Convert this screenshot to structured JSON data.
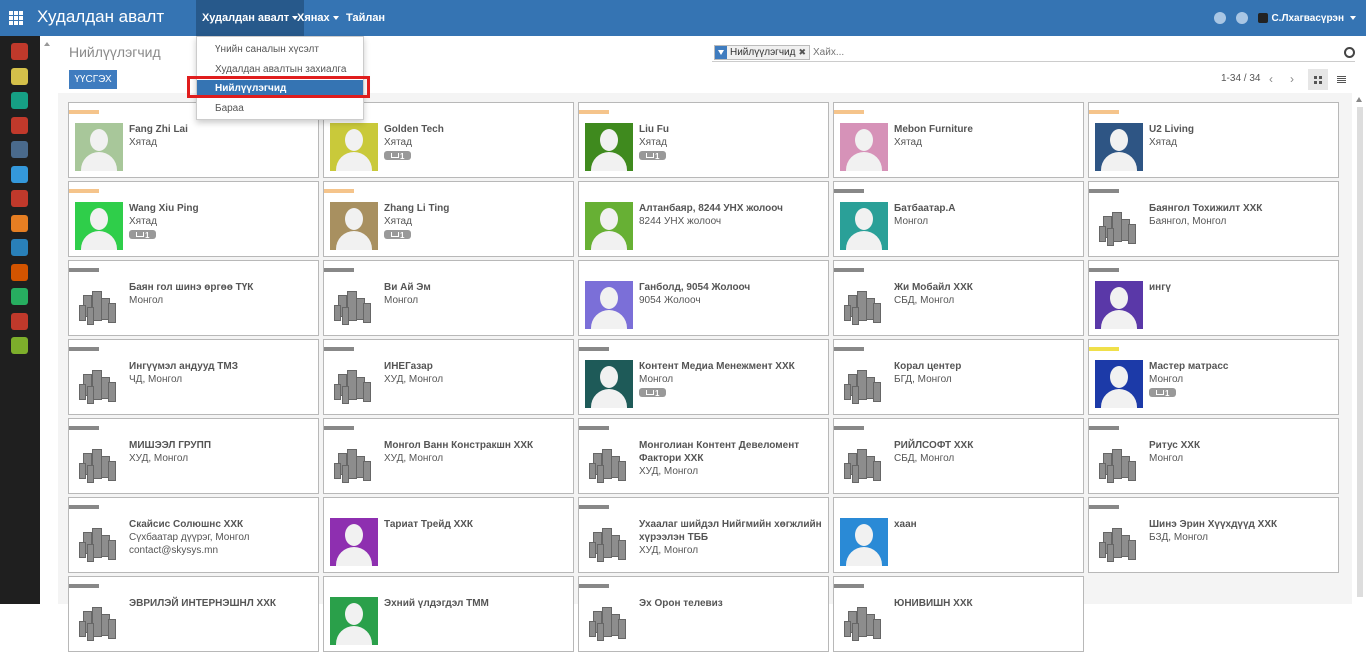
{
  "app_title": "Худалдан авалт",
  "top_menu": [
    {
      "label": "Худалдан авалт",
      "active": true
    },
    {
      "label": "Хянах",
      "active": false
    },
    {
      "label": "Тайлан",
      "active": false
    }
  ],
  "user": {
    "name": "С.Лхагвасүрэн"
  },
  "dropdown": [
    {
      "label": "Үнийн саналын хүсэлт",
      "selected": false
    },
    {
      "label": "Худалдан авалтын захиалга",
      "selected": false
    },
    {
      "label": "Нийлүүлэгчид",
      "selected": true
    },
    {
      "label": "Бараа",
      "selected": false
    }
  ],
  "breadcrumb": "Нийлүүлэгчид",
  "create_button": "ҮҮСГЭХ",
  "search": {
    "facet_label": "Нийлүүлэгчид",
    "placeholder": "Хайх..."
  },
  "pager": "1-34 / 34",
  "sidebar_icons": [
    {
      "icon": "chat-icon",
      "color": "#c0392b"
    },
    {
      "icon": "notes-icon",
      "color": "#d4c04a"
    },
    {
      "icon": "crm-icon",
      "color": "#16a085"
    },
    {
      "icon": "sales-icon",
      "color": "#c0392b"
    },
    {
      "icon": "pos-icon",
      "color": "#4a6a8c"
    },
    {
      "icon": "invoicing-icon",
      "color": "#3498db"
    },
    {
      "icon": "inventory-icon",
      "color": "#c0392b"
    },
    {
      "icon": "purchase-icon",
      "color": "#e67e22"
    },
    {
      "icon": "employees-icon",
      "color": "#2980b9"
    },
    {
      "icon": "website-icon",
      "color": "#d35400"
    },
    {
      "icon": "contacts-icon",
      "color": "#27ae60"
    },
    {
      "icon": "dashboard-icon",
      "color": "#c0392b"
    },
    {
      "icon": "settings-icon",
      "color": "#7dae2b"
    }
  ],
  "cards": [
    {
      "name": "Fang Zhi Lai",
      "lines": [
        "Хятад"
      ],
      "badge": false,
      "image": "person",
      "bg": "#a8c79a",
      "tag": "#f5c48b"
    },
    {
      "name": "Golden Tech",
      "lines": [
        "Хятад"
      ],
      "badge": true,
      "image": "person",
      "bg": "#c9c93a",
      "tag": "#f5c48b"
    },
    {
      "name": "Liu Fu",
      "lines": [
        "Хятад"
      ],
      "badge": true,
      "image": "person",
      "bg": "#3f8a1e",
      "tag": "#f5c48b"
    },
    {
      "name": "Mebon Furniture",
      "lines": [
        "Хятад"
      ],
      "badge": false,
      "image": "person",
      "bg": "#d692b8",
      "tag": "#f5c48b"
    },
    {
      "name": "U2 Living",
      "lines": [
        "Хятад"
      ],
      "badge": false,
      "image": "person",
      "bg": "#2e5584",
      "tag": "#f5c48b"
    },
    {
      "name": "Wang Xiu Ping",
      "lines": [
        "Хятад"
      ],
      "badge": true,
      "image": "person",
      "bg": "#2fce4a",
      "tag": "#f5c48b"
    },
    {
      "name": "Zhang Li Ting",
      "lines": [
        "Хятад"
      ],
      "badge": true,
      "image": "person",
      "bg": "#a89060",
      "tag": "#f5c48b"
    },
    {
      "name": "Алтанбаяр, 8244 УНХ жолооч",
      "lines": [
        "8244 УНХ жолооч"
      ],
      "badge": false,
      "image": "person",
      "bg": "#67b034",
      "tag": ""
    },
    {
      "name": "Батбаатар.А",
      "lines": [
        "Монгол"
      ],
      "badge": false,
      "image": "person",
      "bg": "#2aa098",
      "tag": "#888888"
    },
    {
      "name": "Баянгол Тохижилт ХХК",
      "lines": [
        "Баянгол, Монгол"
      ],
      "badge": false,
      "image": "building",
      "bg": "#ffffff",
      "tag": "#888888"
    },
    {
      "name": "Баян гол шинэ өргөө ТҮК",
      "lines": [
        "Монгол"
      ],
      "badge": false,
      "image": "building",
      "bg": "#ffffff",
      "tag": "#888888"
    },
    {
      "name": "Ви Ай Эм",
      "lines": [
        "Монгол"
      ],
      "badge": false,
      "image": "building",
      "bg": "#ffffff",
      "tag": "#888888"
    },
    {
      "name": "Ганболд, 9054 Жолооч",
      "lines": [
        "9054 Жолооч"
      ],
      "badge": false,
      "image": "person",
      "bg": "#7b6fd8",
      "tag": ""
    },
    {
      "name": "Жи Мобайл ХХК",
      "lines": [
        "СБД, Монгол"
      ],
      "badge": false,
      "image": "building",
      "bg": "#ffffff",
      "tag": "#888888"
    },
    {
      "name": "ингү",
      "lines": [],
      "badge": false,
      "image": "person",
      "bg": "#5a38a8",
      "tag": "#888888"
    },
    {
      "name": "Ингүүмэл андууд ТМЗ",
      "lines": [
        "ЧД, Монгол"
      ],
      "badge": false,
      "image": "building",
      "bg": "#ffffff",
      "tag": "#888888"
    },
    {
      "name": "ИНЕГазар",
      "lines": [
        "ХУД, Монгол"
      ],
      "badge": false,
      "image": "building",
      "bg": "#ffffff",
      "tag": "#888888"
    },
    {
      "name": "Контент Медиа Менежмент ХХК",
      "lines": [
        "Монгол"
      ],
      "badge": true,
      "image": "person",
      "bg": "#1e5a58",
      "tag": "#888888"
    },
    {
      "name": "Корал центер",
      "lines": [
        "БГД, Монгол"
      ],
      "badge": false,
      "image": "building",
      "bg": "#ffffff",
      "tag": "#888888"
    },
    {
      "name": "Мастер матрасс",
      "lines": [
        "Монгол"
      ],
      "badge": true,
      "image": "person",
      "bg": "#1c3aa8",
      "tag": "#f0e04a"
    },
    {
      "name": "МИШЭЭЛ ГРУПП",
      "lines": [
        "ХУД, Монгол"
      ],
      "badge": false,
      "image": "building",
      "bg": "#ffffff",
      "tag": "#888888"
    },
    {
      "name": "Монгол Ванн Констракшн ХХК",
      "lines": [
        "ХУД, Монгол"
      ],
      "badge": false,
      "image": "building",
      "bg": "#ffffff",
      "tag": "#888888"
    },
    {
      "name": "Монголиан Контент Девеломент Фактори ХХК",
      "lines": [
        "ХУД, Монгол"
      ],
      "badge": false,
      "image": "building",
      "bg": "#ffffff",
      "tag": "#888888"
    },
    {
      "name": "РИЙЛСОФТ ХХК",
      "lines": [
        "СБД, Монгол"
      ],
      "badge": false,
      "image": "building",
      "bg": "#ffffff",
      "tag": "#888888"
    },
    {
      "name": "Ритус ХХК",
      "lines": [
        "Монгол"
      ],
      "badge": false,
      "image": "building",
      "bg": "#ffffff",
      "tag": "#888888"
    },
    {
      "name": "Скайсис Солюшнс ХХК",
      "lines": [
        "Сүхбаатар дүүрэг, Монгол",
        "contact@skysys.mn"
      ],
      "badge": false,
      "image": "building",
      "bg": "#ffffff",
      "tag": "#888888"
    },
    {
      "name": "Тариат Трейд ХХК",
      "lines": [],
      "badge": false,
      "image": "person",
      "bg": "#8e2fb0",
      "tag": ""
    },
    {
      "name": "Ухаалаг шийдэл Нийгмийн хөгжлийн хүрээлэн ТББ",
      "lines": [
        "ХУД, Монгол"
      ],
      "badge": false,
      "image": "building",
      "bg": "#ffffff",
      "tag": "#888888"
    },
    {
      "name": "хаан",
      "lines": [],
      "badge": false,
      "image": "person",
      "bg": "#2a8ad6",
      "tag": ""
    },
    {
      "name": "Шинэ Эрин Хүүхдүүд ХХК",
      "lines": [
        "БЗД, Монгол"
      ],
      "badge": false,
      "image": "building",
      "bg": "#ffffff",
      "tag": "#888888"
    },
    {
      "name": "ЭВРИЛЭЙ ИНТЕРНЭШНЛ ХХК",
      "lines": [],
      "badge": false,
      "image": "building",
      "bg": "#ffffff",
      "tag": "#888888"
    },
    {
      "name": "Эхний үлдэгдэл ТММ",
      "lines": [],
      "badge": false,
      "image": "person",
      "bg": "#2aa04a",
      "tag": ""
    },
    {
      "name": "Эх Орон телевиз",
      "lines": [],
      "badge": false,
      "image": "building",
      "bg": "#ffffff",
      "tag": "#888888"
    },
    {
      "name": "ЮНИВИШН ХХК",
      "lines": [],
      "badge": false,
      "image": "building",
      "bg": "#ffffff",
      "tag": "#888888"
    }
  ]
}
